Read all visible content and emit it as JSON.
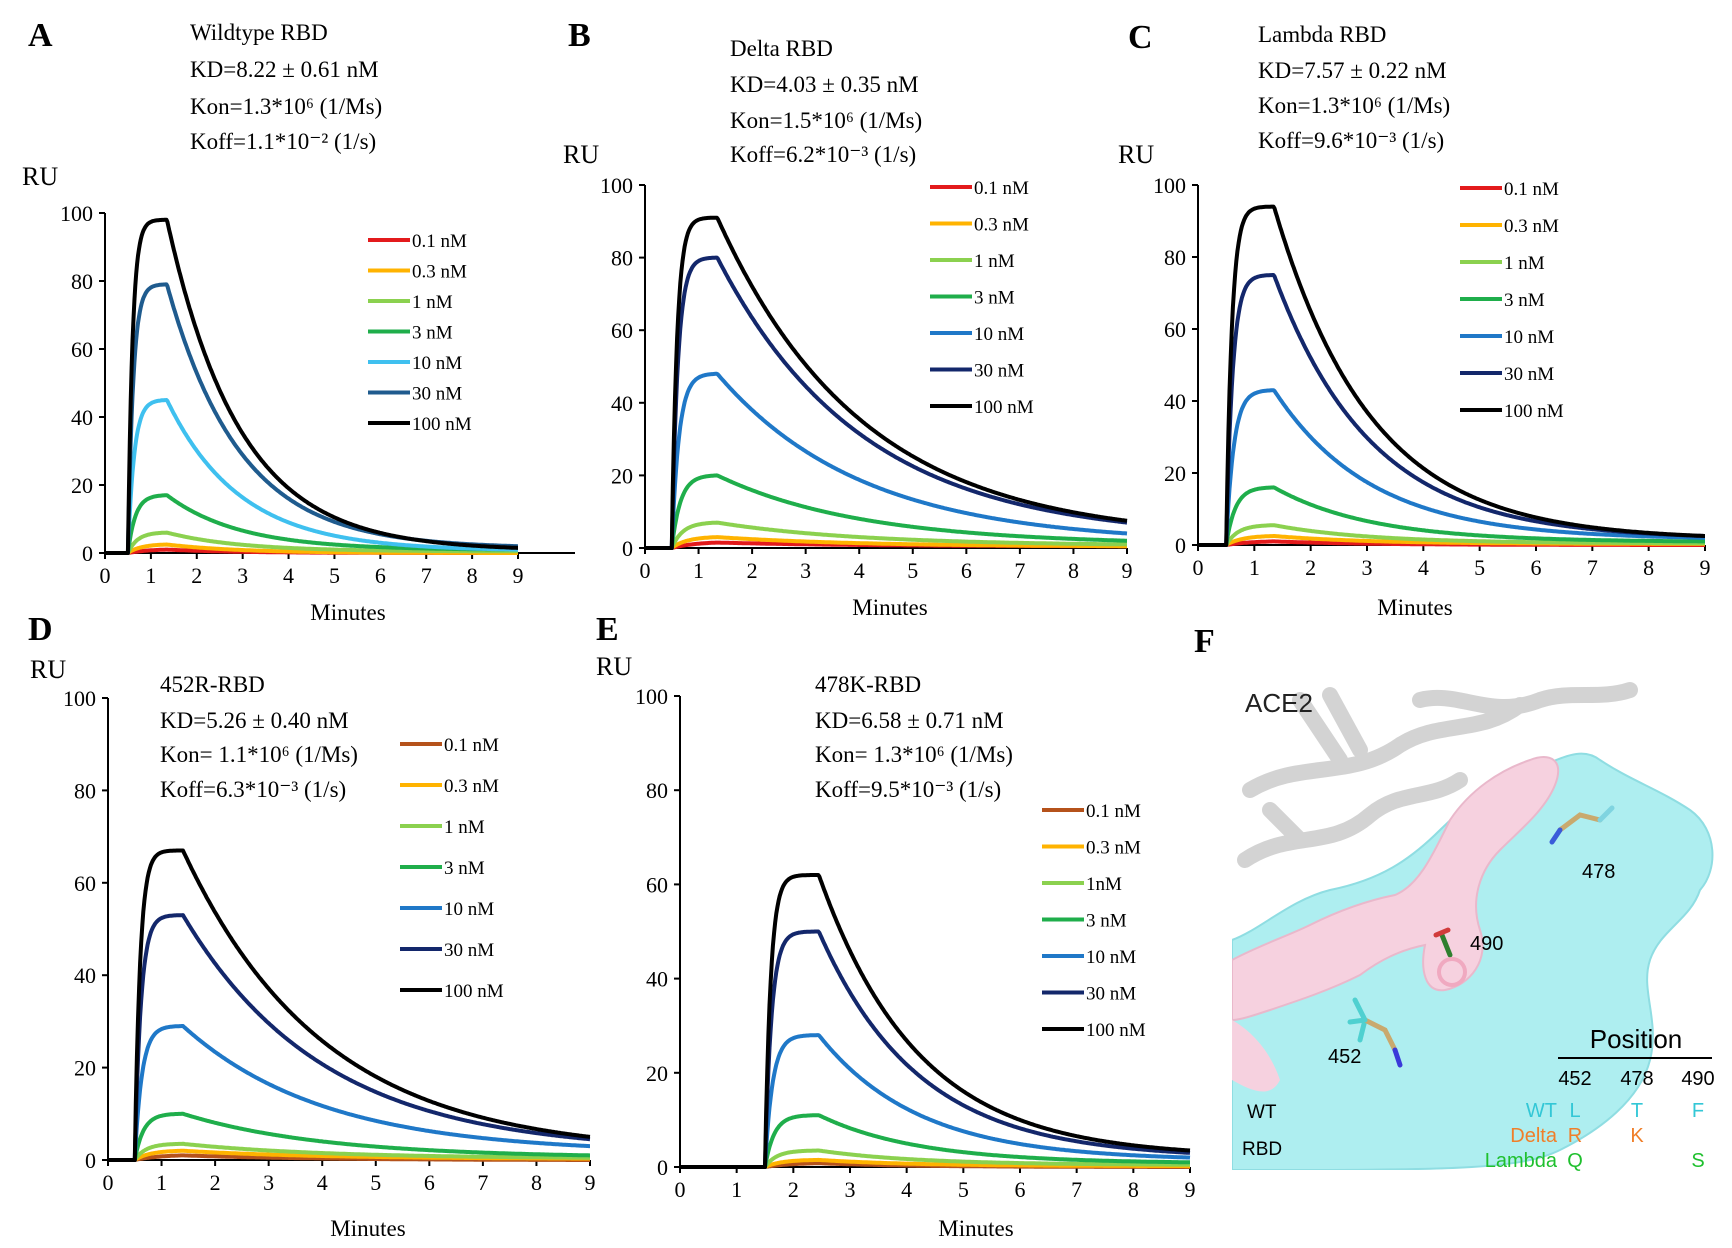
{
  "figure": {
    "xlabel": "Minutes",
    "ylabel": "RU"
  },
  "chart_data": [
    {
      "panel": "A",
      "type": "line",
      "title": "Wildtype RBD",
      "kd": "KD=8.22 ± 0.61 nM",
      "kon": "Kon=1.3*10⁶ (1/Ms)",
      "koff": "Koff=1.1*10⁻² (1/s)",
      "xlabel": "Minutes",
      "ylabel": "RU",
      "xlim": [
        0,
        9
      ],
      "ylim": [
        0,
        100
      ],
      "xticks": [
        0,
        1,
        2,
        3,
        4,
        5,
        6,
        7,
        8,
        9
      ],
      "yticks": [
        0,
        20,
        40,
        60,
        80,
        100
      ],
      "injection_start": 0.5,
      "dissociation_start": 1.35,
      "kinetic_rate": 0.63,
      "series": [
        {
          "name": "0.1 nM",
          "peak": 1,
          "end": 0,
          "color": "#e31a1c"
        },
        {
          "name": "0.3 nM",
          "peak": 2.5,
          "end": 0,
          "color": "#ffb300"
        },
        {
          "name": "1 nM",
          "peak": 6,
          "end": 0.5,
          "color": "#8bd14f"
        },
        {
          "name": "3 nM",
          "peak": 17,
          "end": 1,
          "color": "#1fae4b"
        },
        {
          "name": "10 nM",
          "peak": 45,
          "end": 1,
          "color": "#3fc0ef"
        },
        {
          "name": "30 nM",
          "peak": 79,
          "end": 2,
          "color": "#1f5b8e"
        },
        {
          "name": "100 nM",
          "peak": 98,
          "end": 1.5,
          "color": "#000000"
        }
      ]
    },
    {
      "panel": "B",
      "type": "line",
      "title": "Delta RBD",
      "kd": "KD=4.03 ± 0.35 nM",
      "kon": "Kon=1.5*10⁶ (1/Ms)",
      "koff": "Koff=6.2*10⁻³ (1/s)",
      "xlabel": "Minutes",
      "ylabel": "RU",
      "xlim": [
        0,
        9
      ],
      "ylim": [
        0,
        100
      ],
      "xticks": [
        0,
        1,
        2,
        3,
        4,
        5,
        6,
        7,
        8,
        9
      ],
      "yticks": [
        0,
        20,
        40,
        60,
        80,
        100
      ],
      "injection_start": 0.5,
      "dissociation_start": 1.35,
      "kinetic_rate": 0.37,
      "series": [
        {
          "name": "0.1 nM",
          "peak": 1.5,
          "end": 0.5,
          "color": "#e31a1c"
        },
        {
          "name": "0.3 nM",
          "peak": 3,
          "end": 0.5,
          "color": "#ffb300"
        },
        {
          "name": "1 nM",
          "peak": 7,
          "end": 1,
          "color": "#8bd14f"
        },
        {
          "name": "3 nM",
          "peak": 20,
          "end": 2,
          "color": "#1fae4b"
        },
        {
          "name": "10 nM",
          "peak": 48,
          "end": 4,
          "color": "#1f78c8"
        },
        {
          "name": "30 nM",
          "peak": 80,
          "end": 7,
          "color": "#13276b"
        },
        {
          "name": "100 nM",
          "peak": 91,
          "end": 7.5,
          "color": "#000000"
        }
      ]
    },
    {
      "panel": "C",
      "type": "line",
      "title": "Lambda RBD",
      "kd": "KD=7.57 ±  0.22 nM",
      "kon": "Kon=1.3*10⁶ (1/Ms)",
      "koff": "Koff=9.6*10⁻³ (1/s)",
      "xlabel": "Minutes",
      "ylabel": "RU",
      "xlim": [
        0,
        9
      ],
      "ylim": [
        0,
        100
      ],
      "xticks": [
        0,
        1,
        2,
        3,
        4,
        5,
        6,
        7,
        8,
        9
      ],
      "yticks": [
        0,
        20,
        40,
        60,
        80,
        100
      ],
      "injection_start": 0.5,
      "dissociation_start": 1.35,
      "kinetic_rate": 0.58,
      "series": [
        {
          "name": "0.1 nM",
          "peak": 1,
          "end": 0,
          "color": "#e31a1c"
        },
        {
          "name": "0.3 nM",
          "peak": 2.5,
          "end": 0.3,
          "color": "#ffb300"
        },
        {
          "name": "1 nM",
          "peak": 5.5,
          "end": 0.5,
          "color": "#8bd14f"
        },
        {
          "name": "3 nM",
          "peak": 16,
          "end": 1,
          "color": "#1fae4b"
        },
        {
          "name": "10 nM",
          "peak": 43,
          "end": 2,
          "color": "#1f78c8"
        },
        {
          "name": "30 nM",
          "peak": 75,
          "end": 2.5,
          "color": "#13276b"
        },
        {
          "name": "100 nM",
          "peak": 94,
          "end": 2.5,
          "color": "#000000"
        }
      ]
    },
    {
      "panel": "D",
      "type": "line",
      "title": "452R-RBD",
      "kd": "KD=5.26 ± 0.40  nM",
      "kon": "Kon= 1.1*10⁶ (1/Ms)",
      "koff": "Koff=6.3*10⁻³ (1/s)",
      "xlabel": "Minutes",
      "ylabel": "RU",
      "xlim": [
        0,
        9
      ],
      "ylim": [
        0,
        100
      ],
      "xticks": [
        0,
        1,
        2,
        3,
        4,
        5,
        6,
        7,
        8,
        9
      ],
      "yticks": [
        0,
        20,
        40,
        60,
        80,
        100
      ],
      "injection_start": 0.5,
      "dissociation_start": 1.4,
      "kinetic_rate": 0.38,
      "series": [
        {
          "name": "0.1 nM",
          "peak": 1,
          "end": 0,
          "color": "#b5521b"
        },
        {
          "name": "0.3 nM",
          "peak": 2,
          "end": 0.3,
          "color": "#ffb300"
        },
        {
          "name": "1 nM",
          "peak": 3.5,
          "end": 0.5,
          "color": "#8bd14f"
        },
        {
          "name": "3 nM",
          "peak": 10,
          "end": 1,
          "color": "#1fae4b"
        },
        {
          "name": "10 nM",
          "peak": 29,
          "end": 3,
          "color": "#1f78c8"
        },
        {
          "name": "30 nM",
          "peak": 53,
          "end": 4.5,
          "color": "#13276b"
        },
        {
          "name": "100 nM",
          "peak": 67,
          "end": 5,
          "color": "#000000"
        }
      ]
    },
    {
      "panel": "E",
      "type": "line",
      "title": "478K-RBD",
      "kd": "KD=6.58  ± 0.71 nM",
      "kon": "Kon= 1.3*10⁶ (1/Ms)",
      "koff": "Koff=9.5*10⁻³ (1/s)",
      "xlabel": "Minutes",
      "ylabel": "RU",
      "xlim": [
        0,
        9
      ],
      "ylim": [
        0,
        100
      ],
      "xticks": [
        0,
        1,
        2,
        3,
        4,
        5,
        6,
        7,
        8,
        9
      ],
      "yticks": [
        0,
        20,
        40,
        60,
        80,
        100
      ],
      "injection_start": 1.5,
      "dissociation_start": 2.45,
      "kinetic_rate": 0.57,
      "series": [
        {
          "name": "0.1 nM",
          "peak": 0.8,
          "end": 0,
          "color": "#b5521b"
        },
        {
          "name": "0.3 nM",
          "peak": 1.5,
          "end": 0.2,
          "color": "#ffb300"
        },
        {
          "name": "1nM",
          "peak": 3.5,
          "end": 0.5,
          "color": "#8bd14f"
        },
        {
          "name": "3 nM",
          "peak": 11,
          "end": 1,
          "color": "#1fae4b"
        },
        {
          "name": "10 nM",
          "peak": 28,
          "end": 2,
          "color": "#1f78c8"
        },
        {
          "name": "30 nM",
          "peak": 50,
          "end": 3,
          "color": "#13276b"
        },
        {
          "name": "100 nM",
          "peak": 62,
          "end": 3.5,
          "color": "#000000"
        }
      ]
    }
  ],
  "panel_f": {
    "label": "F",
    "ace2": "ACE2",
    "res_452": "452",
    "res_478": "478",
    "res_490": "490",
    "wt": "WT",
    "rbd": "RBD",
    "table": {
      "header": "Position",
      "positions": [
        "452",
        "478",
        "490"
      ],
      "rows": [
        {
          "name": "WT",
          "values": [
            "L",
            "T",
            "F"
          ],
          "color": "#33c7d6"
        },
        {
          "name": "Delta",
          "values": [
            "R",
            "K",
            ""
          ],
          "color": "#f07f2a"
        },
        {
          "name": "Lambda",
          "values": [
            "Q",
            "",
            "S"
          ],
          "color": "#1fc02e"
        }
      ]
    },
    "colors": {
      "surface_wt": "#aeeef0",
      "surface_variant": "#f6d1df",
      "ace2": "#d3d3d3"
    }
  }
}
